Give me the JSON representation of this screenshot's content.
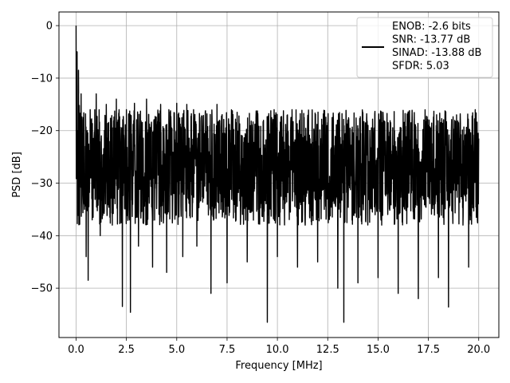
{
  "chart_data": {
    "type": "line",
    "title": "",
    "xlabel": "Frequency [MHz]",
    "ylabel": "PSD [dB]",
    "xlim": [
      -0.85,
      21.0
    ],
    "ylim": [
      -59.4,
      2.6
    ],
    "xticks": [
      0.0,
      2.5,
      5.0,
      7.5,
      10.0,
      12.5,
      15.0,
      17.5,
      20.0
    ],
    "xtick_labels": [
      "0.0",
      "2.5",
      "5.0",
      "7.5",
      "10.0",
      "12.5",
      "15.0",
      "17.5",
      "20.0"
    ],
    "yticks": [
      0,
      -10,
      -20,
      -30,
      -40,
      -50
    ],
    "ytick_labels": [
      "0",
      "−10",
      "−20",
      "−30",
      "−40",
      "−50"
    ],
    "grid": true,
    "legend_position": "upper right",
    "legend_lines": [
      "ENOB: -2.6 bits",
      "SNR: -13.77 dB",
      "SINAD: -13.88 dB",
      "SFDR: 5.03"
    ],
    "line_color": "#000000",
    "series": [
      {
        "x": [
          0.0,
          0.02,
          0.05,
          0.08,
          0.12,
          0.16,
          0.2,
          0.25,
          0.3,
          0.35,
          0.4,
          0.45,
          0.5,
          0.55,
          0.6,
          0.7,
          0.8,
          1.0,
          1.2,
          1.5,
          1.8,
          2.0,
          2.3,
          2.5,
          2.7,
          2.9,
          3.1,
          3.5,
          3.8,
          4.2,
          4.5,
          5.0,
          5.3,
          5.5,
          6.0,
          6.5,
          6.7,
          7.0,
          7.5,
          8.0,
          8.5,
          9.0,
          9.5,
          9.7,
          10.0,
          10.5,
          11.0,
          11.5,
          12.0,
          12.5,
          13.0,
          13.3,
          13.5,
          14.0,
          14.5,
          15.0,
          15.5,
          16.0,
          16.5,
          17.0,
          17.5,
          18.0,
          18.5,
          19.0,
          19.5,
          20.0
        ],
        "y": [
          0.0,
          -21.4,
          -5.0,
          -20.0,
          -8.5,
          -15.2,
          -25.0,
          -13.0,
          -31.0,
          -18.0,
          -34.0,
          -23.0,
          -44.0,
          -20.0,
          -48.5,
          -16.0,
          -37.0,
          -13.0,
          -40.0,
          -15.0,
          -38.0,
          -14.0,
          -53.5,
          -16.0,
          -54.6,
          -14.8,
          -42.0,
          -14.0,
          -46.0,
          -15.0,
          -47.0,
          -14.8,
          -44.0,
          -15.0,
          -42.0,
          -16.8,
          -51.0,
          -15.0,
          -49.0,
          -16.5,
          -45.0,
          -17.0,
          -56.5,
          -17.5,
          -44.0,
          -17.0,
          -46.0,
          -18.0,
          -45.0,
          -18.5,
          -50.0,
          -56.5,
          -18.0,
          -49.0,
          -19.0,
          -48.0,
          -18.5,
          -51.0,
          -18.0,
          -52.0,
          -19.0,
          -48.0,
          -53.6,
          -18.5,
          -46.0,
          -21.5
        ]
      }
    ]
  }
}
